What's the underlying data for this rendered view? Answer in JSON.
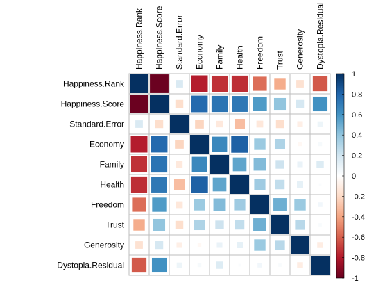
{
  "chart_data": {
    "type": "heatmap",
    "subtype": "correlation-matrix-square-glyphs",
    "variables": [
      "Happiness.Rank",
      "Happiness.Score",
      "Standard.Error",
      "Economy",
      "Family",
      "Health",
      "Freedom",
      "Trust",
      "Generosity",
      "Dystopia.Residual"
    ],
    "matrix": [
      [
        1.0,
        -0.99,
        0.16,
        -0.79,
        -0.73,
        -0.74,
        -0.56,
        -0.37,
        -0.16,
        -0.62
      ],
      [
        -0.99,
        1.0,
        -0.18,
        0.78,
        0.74,
        0.72,
        0.57,
        0.4,
        0.18,
        0.61
      ],
      [
        0.16,
        -0.18,
        1.0,
        -0.22,
        -0.12,
        -0.31,
        -0.13,
        -0.18,
        -0.09,
        0.08
      ],
      [
        -0.79,
        0.78,
        -0.22,
        1.0,
        0.65,
        0.82,
        0.37,
        0.31,
        -0.04,
        0.04
      ],
      [
        -0.73,
        0.74,
        -0.12,
        0.65,
        1.0,
        0.53,
        0.44,
        0.21,
        0.09,
        0.15
      ],
      [
        -0.74,
        0.72,
        -0.31,
        0.82,
        0.53,
        1.0,
        0.36,
        0.25,
        0.11,
        0.02
      ],
      [
        -0.56,
        0.57,
        -0.13,
        0.37,
        0.44,
        0.36,
        1.0,
        0.49,
        0.37,
        0.06
      ],
      [
        -0.37,
        0.4,
        -0.18,
        0.31,
        0.21,
        0.25,
        0.49,
        1.0,
        0.28,
        0.03
      ],
      [
        -0.16,
        0.18,
        -0.09,
        -0.04,
        0.09,
        0.11,
        0.37,
        0.28,
        1.0,
        -0.1
      ],
      [
        -0.62,
        0.61,
        0.08,
        0.04,
        0.15,
        0.02,
        0.06,
        0.03,
        -0.1,
        1.0
      ]
    ],
    "colorbar": {
      "range": [
        -1,
        1
      ],
      "ticks": [
        "1",
        "0.8",
        "0.6",
        "0.4",
        "0.2",
        "0",
        "-0.2",
        "-0.4",
        "-0.6",
        "-0.8",
        "-1"
      ],
      "placement": "right",
      "colors": [
        "#67001F",
        "#B2182B",
        "#D6604D",
        "#F4A582",
        "#FDDBC7",
        "#FFFFFF",
        "#D1E5F0",
        "#92C5DE",
        "#4393C3",
        "#2166AC",
        "#053061"
      ]
    },
    "glyph": "square",
    "grid": true
  }
}
